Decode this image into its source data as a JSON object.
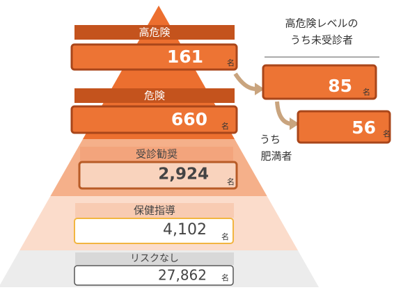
{
  "pyramid": [
    {
      "label": "高危険",
      "count": "161",
      "unit": "名"
    },
    {
      "label": "危険",
      "count": "660",
      "unit": "名"
    },
    {
      "label": "受診勧奨",
      "count": "2,924",
      "unit": "名"
    },
    {
      "label": "保健指導",
      "count": "4,102",
      "unit": "名"
    },
    {
      "label": "リスクなし",
      "count": "27,862",
      "unit": "名"
    }
  ],
  "side": {
    "title_lines": [
      "高危険レベルの",
      "うち未受診者"
    ],
    "unscreened": {
      "count": "85",
      "unit": "名"
    },
    "obese_label_lines": [
      "うち",
      "肥満者"
    ],
    "obese": {
      "count": "56",
      "unit": "名"
    }
  }
}
